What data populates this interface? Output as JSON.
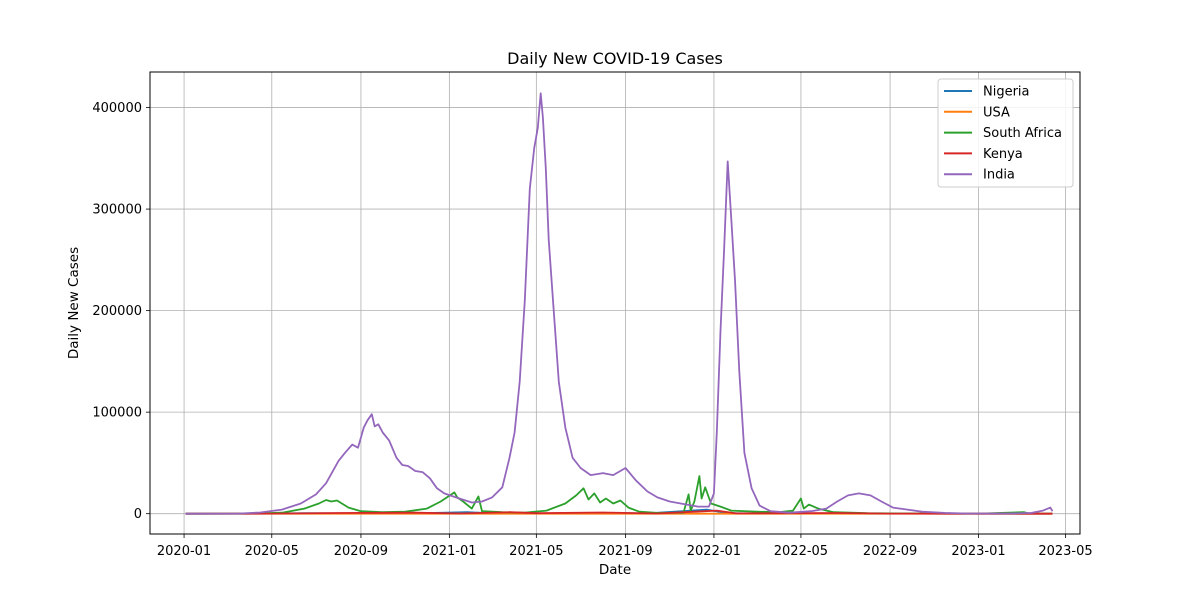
{
  "chart_data": {
    "type": "line",
    "title": "Daily New COVID-19 Cases",
    "xlabel": "Date",
    "ylabel": "Daily New Cases",
    "x_range": [
      "2019-11-15",
      "2023-05-21"
    ],
    "ylim": [
      -20000,
      435000
    ],
    "x_ticks": [
      "2020-01",
      "2020-05",
      "2020-09",
      "2021-01",
      "2021-05",
      "2021-09",
      "2022-01",
      "2022-05",
      "2022-09",
      "2023-01",
      "2023-05"
    ],
    "y_ticks": [
      0,
      100000,
      200000,
      300000,
      400000
    ],
    "grid": true,
    "legend_position": "top-right",
    "series": [
      {
        "name": "Nigeria",
        "color": "#1f77b4",
        "points": [
          [
            "2020-01-03",
            0
          ],
          [
            "2020-04-01",
            30
          ],
          [
            "2020-06-15",
            500
          ],
          [
            "2020-08-15",
            300
          ],
          [
            "2020-11-01",
            150
          ],
          [
            "2020-12-20",
            900
          ],
          [
            "2021-01-25",
            1500
          ],
          [
            "2021-03-01",
            400
          ],
          [
            "2021-06-01",
            100
          ],
          [
            "2021-08-10",
            700
          ],
          [
            "2021-10-01",
            300
          ],
          [
            "2021-12-22",
            4000
          ],
          [
            "2022-01-20",
            500
          ],
          [
            "2022-04-01",
            50
          ],
          [
            "2022-08-01",
            300
          ],
          [
            "2022-12-01",
            30
          ],
          [
            "2023-04-13",
            20
          ]
        ]
      },
      {
        "name": "USA",
        "color": "#ff7f0e",
        "points": [
          [
            "2020-01-03",
            0
          ],
          [
            "2023-04-13",
            0
          ]
        ]
      },
      {
        "name": "South Africa",
        "color": "#2ca02c",
        "points": [
          [
            "2020-01-03",
            0
          ],
          [
            "2020-04-01",
            50
          ],
          [
            "2020-05-15",
            1000
          ],
          [
            "2020-06-15",
            5000
          ],
          [
            "2020-07-05",
            10000
          ],
          [
            "2020-07-15",
            13500
          ],
          [
            "2020-07-22",
            12000
          ],
          [
            "2020-07-30",
            13000
          ],
          [
            "2020-08-15",
            6000
          ],
          [
            "2020-09-01",
            2500
          ],
          [
            "2020-10-01",
            1500
          ],
          [
            "2020-11-01",
            2000
          ],
          [
            "2020-12-01",
            5000
          ],
          [
            "2020-12-20",
            12000
          ],
          [
            "2021-01-08",
            21000
          ],
          [
            "2021-01-12",
            16000
          ],
          [
            "2021-01-20",
            12000
          ],
          [
            "2021-02-01",
            5000
          ],
          [
            "2021-02-10",
            17000
          ],
          [
            "2021-02-15",
            2500
          ],
          [
            "2021-03-15",
            1500
          ],
          [
            "2021-04-15",
            1000
          ],
          [
            "2021-05-15",
            3000
          ],
          [
            "2021-06-10",
            10000
          ],
          [
            "2021-06-25",
            18000
          ],
          [
            "2021-07-05",
            25000
          ],
          [
            "2021-07-12",
            14000
          ],
          [
            "2021-07-20",
            20000
          ],
          [
            "2021-07-28",
            11000
          ],
          [
            "2021-08-05",
            15000
          ],
          [
            "2021-08-15",
            10000
          ],
          [
            "2021-08-25",
            13000
          ],
          [
            "2021-09-05",
            6000
          ],
          [
            "2021-09-20",
            2000
          ],
          [
            "2021-10-15",
            800
          ],
          [
            "2021-11-20",
            1000
          ],
          [
            "2021-11-27",
            19000
          ],
          [
            "2021-11-30",
            3000
          ],
          [
            "2021-12-05",
            12000
          ],
          [
            "2021-12-12",
            37000
          ],
          [
            "2021-12-15",
            15000
          ],
          [
            "2021-12-20",
            26000
          ],
          [
            "2021-12-28",
            10000
          ],
          [
            "2022-01-10",
            7000
          ],
          [
            "2022-01-25",
            3000
          ],
          [
            "2022-03-01",
            2000
          ],
          [
            "2022-04-01",
            1500
          ],
          [
            "2022-04-20",
            3000
          ],
          [
            "2022-05-01",
            15000
          ],
          [
            "2022-05-05",
            5000
          ],
          [
            "2022-05-12",
            9000
          ],
          [
            "2022-05-25",
            5000
          ],
          [
            "2022-06-15",
            1500
          ],
          [
            "2022-08-01",
            500
          ],
          [
            "2022-10-01",
            200
          ],
          [
            "2023-01-01",
            100
          ],
          [
            "2023-03-05",
            1500
          ],
          [
            "2023-03-12",
            100
          ],
          [
            "2023-04-13",
            50
          ]
        ]
      },
      {
        "name": "Kenya",
        "color": "#d62728",
        "points": [
          [
            "2020-01-03",
            0
          ],
          [
            "2020-05-01",
            50
          ],
          [
            "2020-08-01",
            700
          ],
          [
            "2020-11-15",
            1000
          ],
          [
            "2021-01-15",
            200
          ],
          [
            "2021-03-25",
            1500
          ],
          [
            "2021-05-01",
            500
          ],
          [
            "2021-08-01",
            1200
          ],
          [
            "2021-10-15",
            150
          ],
          [
            "2021-12-20",
            2500
          ],
          [
            "2022-01-05",
            3000
          ],
          [
            "2022-02-01",
            300
          ],
          [
            "2022-06-20",
            700
          ],
          [
            "2022-09-01",
            50
          ],
          [
            "2023-04-13",
            20
          ]
        ]
      },
      {
        "name": "India",
        "color": "#9467bd",
        "points": [
          [
            "2020-01-03",
            0
          ],
          [
            "2020-03-15",
            100
          ],
          [
            "2020-04-15",
            1200
          ],
          [
            "2020-05-15",
            4000
          ],
          [
            "2020-06-10",
            10000
          ],
          [
            "2020-07-01",
            19000
          ],
          [
            "2020-07-15",
            30000
          ],
          [
            "2020-08-01",
            52000
          ],
          [
            "2020-08-10",
            60000
          ],
          [
            "2020-08-20",
            68000
          ],
          [
            "2020-08-28",
            65000
          ],
          [
            "2020-09-05",
            85000
          ],
          [
            "2020-09-10",
            92000
          ],
          [
            "2020-09-16",
            98000
          ],
          [
            "2020-09-20",
            86000
          ],
          [
            "2020-09-25",
            88000
          ],
          [
            "2020-10-01",
            80000
          ],
          [
            "2020-10-10",
            72000
          ],
          [
            "2020-10-20",
            55000
          ],
          [
            "2020-10-28",
            48000
          ],
          [
            "2020-11-05",
            47000
          ],
          [
            "2020-11-15",
            42000
          ],
          [
            "2020-11-25",
            41000
          ],
          [
            "2020-12-05",
            35000
          ],
          [
            "2020-12-15",
            25000
          ],
          [
            "2020-12-25",
            20000
          ],
          [
            "2021-01-10",
            16000
          ],
          [
            "2021-02-01",
            11000
          ],
          [
            "2021-02-15",
            12000
          ],
          [
            "2021-03-01",
            16000
          ],
          [
            "2021-03-15",
            26000
          ],
          [
            "2021-03-25",
            55000
          ],
          [
            "2021-04-01",
            80000
          ],
          [
            "2021-04-08",
            130000
          ],
          [
            "2021-04-15",
            210000
          ],
          [
            "2021-04-22",
            320000
          ],
          [
            "2021-04-28",
            360000
          ],
          [
            "2021-05-03",
            380000
          ],
          [
            "2021-05-07",
            414000
          ],
          [
            "2021-05-10",
            390000
          ],
          [
            "2021-05-14",
            340000
          ],
          [
            "2021-05-18",
            270000
          ],
          [
            "2021-05-24",
            210000
          ],
          [
            "2021-06-01",
            130000
          ],
          [
            "2021-06-10",
            85000
          ],
          [
            "2021-06-20",
            55000
          ],
          [
            "2021-07-01",
            45000
          ],
          [
            "2021-07-15",
            38000
          ],
          [
            "2021-08-01",
            40000
          ],
          [
            "2021-08-15",
            38000
          ],
          [
            "2021-09-01",
            45000
          ],
          [
            "2021-09-15",
            33000
          ],
          [
            "2021-10-01",
            22000
          ],
          [
            "2021-10-15",
            16000
          ],
          [
            "2021-11-01",
            12000
          ],
          [
            "2021-11-20",
            9500
          ],
          [
            "2021-12-10",
            7000
          ],
          [
            "2021-12-25",
            7000
          ],
          [
            "2022-01-01",
            20000
          ],
          [
            "2022-01-05",
            80000
          ],
          [
            "2022-01-10",
            180000
          ],
          [
            "2022-01-15",
            260000
          ],
          [
            "2022-01-20",
            347000
          ],
          [
            "2022-01-25",
            290000
          ],
          [
            "2022-01-30",
            230000
          ],
          [
            "2022-02-05",
            140000
          ],
          [
            "2022-02-12",
            60000
          ],
          [
            "2022-02-22",
            25000
          ],
          [
            "2022-03-05",
            8000
          ],
          [
            "2022-03-20",
            2500
          ],
          [
            "2022-04-15",
            1000
          ],
          [
            "2022-05-15",
            2500
          ],
          [
            "2022-06-05",
            5000
          ],
          [
            "2022-06-20",
            12000
          ],
          [
            "2022-07-05",
            18000
          ],
          [
            "2022-07-20",
            20000
          ],
          [
            "2022-08-05",
            18000
          ],
          [
            "2022-08-20",
            12000
          ],
          [
            "2022-09-05",
            6000
          ],
          [
            "2022-09-25",
            4000
          ],
          [
            "2022-10-15",
            2000
          ],
          [
            "2022-11-15",
            800
          ],
          [
            "2022-12-15",
            200
          ],
          [
            "2023-01-15",
            150
          ],
          [
            "2023-02-15",
            200
          ],
          [
            "2023-03-15",
            800
          ],
          [
            "2023-03-31",
            3000
          ],
          [
            "2023-04-10",
            6000
          ],
          [
            "2023-04-13",
            2500
          ]
        ]
      }
    ]
  }
}
